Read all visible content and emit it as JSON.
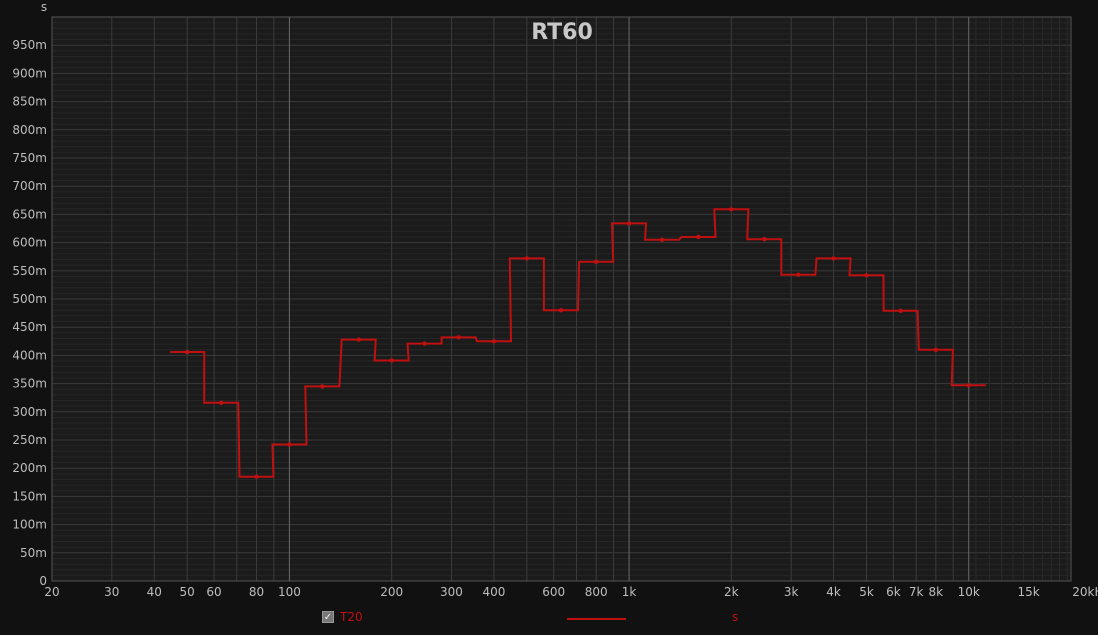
{
  "chart_data": {
    "type": "line",
    "title": "RT60",
    "ylabel": "s",
    "xlabel": "",
    "x_scale": "log",
    "xlim": [
      20,
      20000
    ],
    "ylim": [
      0,
      1.0
    ],
    "grid": true,
    "x_tick_labels": [
      "20",
      "30",
      "40",
      "50",
      "60",
      "80",
      "100",
      "200",
      "300",
      "400",
      "600",
      "800",
      "1k",
      "2k",
      "3k",
      "4k",
      "5k",
      "6k",
      "7k",
      "8k",
      "10k",
      "15k",
      "20kHz"
    ],
    "x_tick_values": [
      20,
      30,
      40,
      50,
      60,
      80,
      100,
      200,
      300,
      400,
      600,
      800,
      1000,
      2000,
      3000,
      4000,
      5000,
      6000,
      7000,
      8000,
      10000,
      15000,
      20000
    ],
    "y_tick_labels": [
      "0",
      "50m",
      "100m",
      "150m",
      "200m",
      "250m",
      "300m",
      "350m",
      "400m",
      "450m",
      "500m",
      "550m",
      "600m",
      "650m",
      "700m",
      "750m",
      "800m",
      "850m",
      "900m",
      "950m"
    ],
    "series": [
      {
        "name": "T20",
        "unit": "s",
        "color": "#c01010",
        "style": "third-octave steps",
        "x": [
          50,
          63,
          80,
          100,
          125,
          160,
          200,
          250,
          315,
          400,
          500,
          630,
          800,
          1000,
          1250,
          1600,
          2000,
          2500,
          3150,
          4000,
          5000,
          6300,
          8000,
          10000
        ],
        "y": [
          0.406,
          0.316,
          0.185,
          0.242,
          0.345,
          0.428,
          0.391,
          0.421,
          0.432,
          0.425,
          0.572,
          0.48,
          0.566,
          0.634,
          0.605,
          0.61,
          0.659,
          0.606,
          0.543,
          0.572,
          0.542,
          0.479,
          0.41,
          0.347
        ]
      }
    ]
  },
  "legend": {
    "checked": true,
    "label": "T20",
    "unit": "s"
  }
}
